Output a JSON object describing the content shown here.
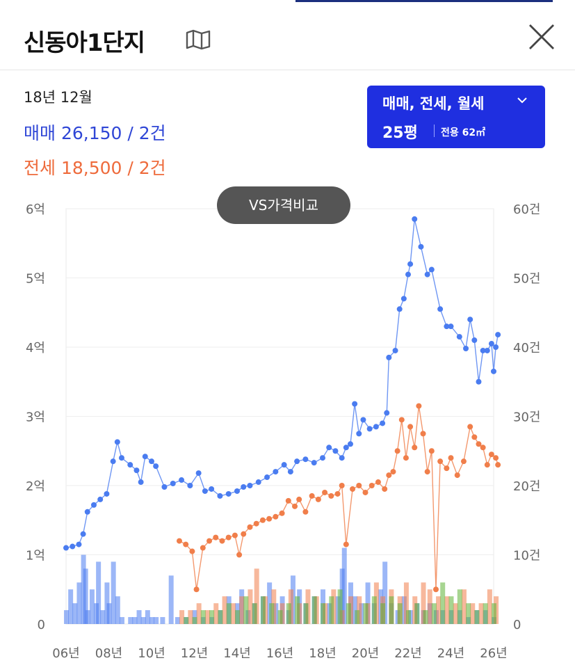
{
  "header": {
    "title": "신동아1단지",
    "map_icon": "map-icon",
    "close_icon": "close-icon"
  },
  "summary": {
    "period": "18년 12월",
    "sale": "매매 26,150 / 2건",
    "jeonse": "전세 18,500 / 2건"
  },
  "filter": {
    "types": "매매, 전세, 월세",
    "size": "25평",
    "area": "전용 62㎡"
  },
  "compare_button": "VS가격비교",
  "colors": {
    "accent": "#1f2fe0",
    "sale": "#4a7cf0",
    "jeonse": "#f07e4a",
    "wolse_volume": "#5fb336",
    "title_bar": "#1b2f7e"
  },
  "chart_data": {
    "type": "line",
    "x_tick_labels": [
      "06년",
      "08년",
      "10년",
      "12년",
      "14년",
      "16년",
      "18년",
      "20년",
      "22년",
      "24년",
      "26년"
    ],
    "xlim": [
      2006,
      2026
    ],
    "y_left_ticks": [
      "0",
      "1억",
      "2억",
      "3억",
      "4억",
      "5억",
      "6억"
    ],
    "ylim_left": [
      0,
      6
    ],
    "y_left_unit": "억",
    "y_right_ticks": [
      "0",
      "10건",
      "20건",
      "30건",
      "40건",
      "50건",
      "60건"
    ],
    "ylim_right": [
      0,
      60
    ],
    "y_right_unit": "건",
    "grid": true,
    "series": [
      {
        "name": "매매",
        "kind": "line",
        "axis": "left",
        "points": [
          [
            2006.0,
            1.1
          ],
          [
            2006.3,
            1.12
          ],
          [
            2006.6,
            1.15
          ],
          [
            2006.8,
            1.3
          ],
          [
            2007.0,
            1.62
          ],
          [
            2007.3,
            1.72
          ],
          [
            2007.6,
            1.8
          ],
          [
            2007.9,
            1.88
          ],
          [
            2008.2,
            2.35
          ],
          [
            2008.4,
            2.63
          ],
          [
            2008.6,
            2.4
          ],
          [
            2009.0,
            2.3
          ],
          [
            2009.3,
            2.22
          ],
          [
            2009.5,
            2.05
          ],
          [
            2009.7,
            2.42
          ],
          [
            2010.0,
            2.35
          ],
          [
            2010.2,
            2.28
          ],
          [
            2010.6,
            1.98
          ],
          [
            2011.0,
            2.03
          ],
          [
            2011.4,
            2.08
          ],
          [
            2011.8,
            2.0
          ],
          [
            2012.2,
            2.18
          ],
          [
            2012.5,
            1.92
          ],
          [
            2012.8,
            1.95
          ],
          [
            2013.2,
            1.85
          ],
          [
            2013.6,
            1.88
          ],
          [
            2014.0,
            1.92
          ],
          [
            2014.3,
            1.98
          ],
          [
            2014.6,
            2.0
          ],
          [
            2015.0,
            2.05
          ],
          [
            2015.4,
            2.12
          ],
          [
            2015.8,
            2.2
          ],
          [
            2016.2,
            2.3
          ],
          [
            2016.5,
            2.2
          ],
          [
            2016.8,
            2.35
          ],
          [
            2017.2,
            2.38
          ],
          [
            2017.6,
            2.33
          ],
          [
            2018.0,
            2.4
          ],
          [
            2018.3,
            2.55
          ],
          [
            2018.6,
            2.5
          ],
          [
            2018.9,
            2.4
          ],
          [
            2019.1,
            2.55
          ],
          [
            2019.3,
            2.6
          ],
          [
            2019.5,
            3.18
          ],
          [
            2019.7,
            2.75
          ],
          [
            2019.9,
            2.95
          ],
          [
            2020.2,
            2.82
          ],
          [
            2020.5,
            2.85
          ],
          [
            2020.8,
            2.9
          ],
          [
            2021.0,
            3.05
          ],
          [
            2021.1,
            3.85
          ],
          [
            2021.4,
            3.95
          ],
          [
            2021.6,
            4.55
          ],
          [
            2021.8,
            4.7
          ],
          [
            2022.0,
            5.05
          ],
          [
            2022.1,
            5.2
          ],
          [
            2022.3,
            5.85
          ],
          [
            2022.6,
            5.45
          ],
          [
            2022.9,
            5.05
          ],
          [
            2023.1,
            5.12
          ],
          [
            2023.5,
            4.55
          ],
          [
            2023.8,
            4.3
          ],
          [
            2024.0,
            4.3
          ],
          [
            2024.4,
            4.15
          ],
          [
            2024.7,
            3.98
          ],
          [
            2024.9,
            4.4
          ],
          [
            2025.1,
            4.1
          ],
          [
            2025.3,
            3.5
          ],
          [
            2025.5,
            3.95
          ],
          [
            2025.7,
            3.95
          ],
          [
            2025.9,
            4.05
          ],
          [
            2026.0,
            3.65
          ],
          [
            2026.1,
            4.0
          ],
          [
            2026.2,
            4.18
          ]
        ]
      },
      {
        "name": "전세",
        "kind": "line",
        "axis": "left",
        "points": [
          [
            2011.3,
            1.2
          ],
          [
            2011.6,
            1.15
          ],
          [
            2011.9,
            1.05
          ],
          [
            2012.1,
            0.5
          ],
          [
            2012.4,
            1.1
          ],
          [
            2012.7,
            1.2
          ],
          [
            2013.0,
            1.25
          ],
          [
            2013.3,
            1.2
          ],
          [
            2013.6,
            1.25
          ],
          [
            2013.9,
            1.28
          ],
          [
            2014.1,
            1.0
          ],
          [
            2014.3,
            1.3
          ],
          [
            2014.6,
            1.4
          ],
          [
            2014.9,
            1.45
          ],
          [
            2015.2,
            1.5
          ],
          [
            2015.5,
            1.52
          ],
          [
            2015.8,
            1.55
          ],
          [
            2016.1,
            1.6
          ],
          [
            2016.4,
            1.78
          ],
          [
            2016.7,
            1.7
          ],
          [
            2016.9,
            1.8
          ],
          [
            2017.2,
            1.62
          ],
          [
            2017.5,
            1.85
          ],
          [
            2017.8,
            1.8
          ],
          [
            2018.1,
            1.9
          ],
          [
            2018.4,
            1.85
          ],
          [
            2018.7,
            1.88
          ],
          [
            2018.9,
            2.0
          ],
          [
            2019.1,
            1.15
          ],
          [
            2019.4,
            1.95
          ],
          [
            2019.7,
            2.0
          ],
          [
            2020.0,
            1.9
          ],
          [
            2020.3,
            2.0
          ],
          [
            2020.6,
            2.05
          ],
          [
            2020.9,
            1.95
          ],
          [
            2021.1,
            2.15
          ],
          [
            2021.3,
            2.2
          ],
          [
            2021.5,
            2.5
          ],
          [
            2021.7,
            2.95
          ],
          [
            2021.9,
            2.4
          ],
          [
            2022.1,
            2.85
          ],
          [
            2022.3,
            2.55
          ],
          [
            2022.5,
            3.15
          ],
          [
            2022.7,
            2.75
          ],
          [
            2022.9,
            2.2
          ],
          [
            2023.1,
            2.5
          ],
          [
            2023.3,
            0.5
          ],
          [
            2023.5,
            2.35
          ],
          [
            2023.8,
            2.25
          ],
          [
            2024.0,
            2.4
          ],
          [
            2024.3,
            2.15
          ],
          [
            2024.6,
            2.35
          ],
          [
            2024.9,
            2.85
          ],
          [
            2025.1,
            2.7
          ],
          [
            2025.3,
            2.6
          ],
          [
            2025.5,
            2.55
          ],
          [
            2025.7,
            2.3
          ],
          [
            2025.9,
            2.45
          ],
          [
            2026.1,
            2.4
          ],
          [
            2026.2,
            2.3
          ]
        ]
      },
      {
        "name": "매매 거래량",
        "kind": "bar",
        "axis": "right",
        "color": "#4a7cf0",
        "points": [
          [
            2006.0,
            2
          ],
          [
            2006.2,
            5
          ],
          [
            2006.4,
            3
          ],
          [
            2006.6,
            6
          ],
          [
            2006.8,
            10
          ],
          [
            2006.9,
            8
          ],
          [
            2007.0,
            2
          ],
          [
            2007.2,
            5
          ],
          [
            2007.4,
            3
          ],
          [
            2007.5,
            9
          ],
          [
            2007.7,
            2
          ],
          [
            2007.9,
            6
          ],
          [
            2008.0,
            3
          ],
          [
            2008.2,
            9
          ],
          [
            2008.4,
            4
          ],
          [
            2008.6,
            1
          ],
          [
            2009.0,
            1
          ],
          [
            2009.2,
            1
          ],
          [
            2009.4,
            2
          ],
          [
            2009.6,
            1
          ],
          [
            2009.8,
            2
          ],
          [
            2010.0,
            1
          ],
          [
            2010.2,
            1
          ],
          [
            2010.5,
            1
          ],
          [
            2010.9,
            7
          ],
          [
            2011.2,
            1
          ],
          [
            2011.6,
            1
          ],
          [
            2012.0,
            2
          ],
          [
            2012.4,
            1
          ],
          [
            2012.8,
            1
          ],
          [
            2013.2,
            2
          ],
          [
            2013.6,
            4
          ],
          [
            2014.0,
            3
          ],
          [
            2014.2,
            5
          ],
          [
            2014.5,
            2
          ],
          [
            2014.8,
            3
          ],
          [
            2015.2,
            4
          ],
          [
            2015.5,
            6
          ],
          [
            2015.8,
            3
          ],
          [
            2016.1,
            4
          ],
          [
            2016.4,
            2
          ],
          [
            2016.6,
            7
          ],
          [
            2016.9,
            5
          ],
          [
            2017.2,
            3
          ],
          [
            2017.6,
            4
          ],
          [
            2018.0,
            5
          ],
          [
            2018.3,
            3
          ],
          [
            2018.7,
            4
          ],
          [
            2018.9,
            8
          ],
          [
            2019.0,
            11
          ],
          [
            2019.3,
            6
          ],
          [
            2019.5,
            4
          ],
          [
            2019.8,
            3
          ],
          [
            2020.1,
            6
          ],
          [
            2020.4,
            3
          ],
          [
            2020.7,
            5
          ],
          [
            2020.9,
            9
          ],
          [
            2021.2,
            3
          ],
          [
            2021.5,
            2
          ],
          [
            2021.8,
            4
          ],
          [
            2022.1,
            2
          ],
          [
            2022.4,
            3
          ],
          [
            2022.7,
            2
          ],
          [
            2023.0,
            3
          ],
          [
            2023.3,
            2
          ],
          [
            2023.6,
            2
          ],
          [
            2024.0,
            2
          ],
          [
            2024.4,
            2
          ],
          [
            2024.8,
            1
          ],
          [
            2025.2,
            2
          ],
          [
            2025.6,
            2
          ],
          [
            2026.0,
            1
          ]
        ]
      },
      {
        "name": "전세 거래량",
        "kind": "bar",
        "axis": "right",
        "color": "#f07e4a",
        "points": [
          [
            2011.4,
            2
          ],
          [
            2011.8,
            2
          ],
          [
            2012.2,
            3
          ],
          [
            2012.6,
            2
          ],
          [
            2013.0,
            3
          ],
          [
            2013.4,
            4
          ],
          [
            2013.8,
            3
          ],
          [
            2014.2,
            4
          ],
          [
            2014.6,
            5
          ],
          [
            2014.9,
            8
          ],
          [
            2015.3,
            4
          ],
          [
            2015.7,
            5
          ],
          [
            2016.1,
            3
          ],
          [
            2016.5,
            5
          ],
          [
            2016.9,
            3
          ],
          [
            2017.3,
            5
          ],
          [
            2017.7,
            4
          ],
          [
            2018.1,
            3
          ],
          [
            2018.5,
            5
          ],
          [
            2018.9,
            2
          ],
          [
            2019.3,
            4
          ],
          [
            2019.7,
            4
          ],
          [
            2020.1,
            3
          ],
          [
            2020.5,
            6
          ],
          [
            2020.8,
            4
          ],
          [
            2021.2,
            5
          ],
          [
            2021.6,
            4
          ],
          [
            2021.9,
            6
          ],
          [
            2022.3,
            4
          ],
          [
            2022.7,
            6
          ],
          [
            2023.0,
            5
          ],
          [
            2023.4,
            4
          ],
          [
            2023.8,
            4
          ],
          [
            2024.2,
            3
          ],
          [
            2024.6,
            5
          ],
          [
            2025.0,
            3
          ],
          [
            2025.4,
            3
          ],
          [
            2025.8,
            5
          ],
          [
            2026.1,
            4
          ]
        ]
      },
      {
        "name": "월세 거래량",
        "kind": "bar",
        "axis": "right",
        "color": "#5fb336",
        "points": [
          [
            2011.6,
            1
          ],
          [
            2012.0,
            1
          ],
          [
            2012.4,
            2
          ],
          [
            2012.8,
            2
          ],
          [
            2013.2,
            2
          ],
          [
            2013.6,
            3
          ],
          [
            2014.0,
            2
          ],
          [
            2014.4,
            4
          ],
          [
            2014.8,
            3
          ],
          [
            2015.2,
            4
          ],
          [
            2015.6,
            3
          ],
          [
            2016.0,
            2
          ],
          [
            2016.4,
            3
          ],
          [
            2016.8,
            4
          ],
          [
            2017.2,
            3
          ],
          [
            2017.6,
            4
          ],
          [
            2018.0,
            3
          ],
          [
            2018.4,
            4
          ],
          [
            2018.8,
            5
          ],
          [
            2019.2,
            3
          ],
          [
            2019.6,
            2
          ],
          [
            2020.0,
            3
          ],
          [
            2020.4,
            4
          ],
          [
            2020.8,
            3
          ],
          [
            2021.2,
            4
          ],
          [
            2021.6,
            3
          ],
          [
            2022.0,
            2
          ],
          [
            2022.4,
            3
          ],
          [
            2022.8,
            2
          ],
          [
            2023.2,
            3
          ],
          [
            2023.6,
            6
          ],
          [
            2024.0,
            4
          ],
          [
            2024.4,
            5
          ],
          [
            2024.8,
            3
          ],
          [
            2025.2,
            2
          ],
          [
            2025.6,
            3
          ],
          [
            2026.0,
            3
          ]
        ]
      }
    ]
  }
}
